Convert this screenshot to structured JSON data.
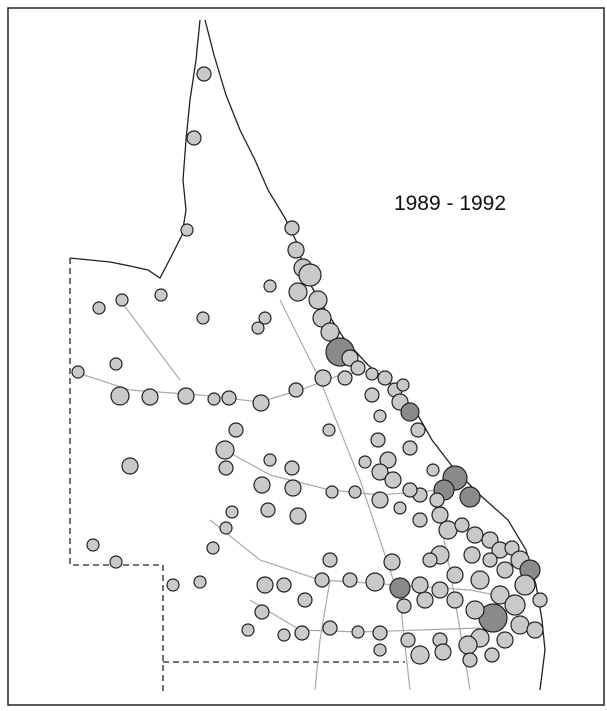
{
  "map": {
    "title": "1989 - 1992"
  }
}
